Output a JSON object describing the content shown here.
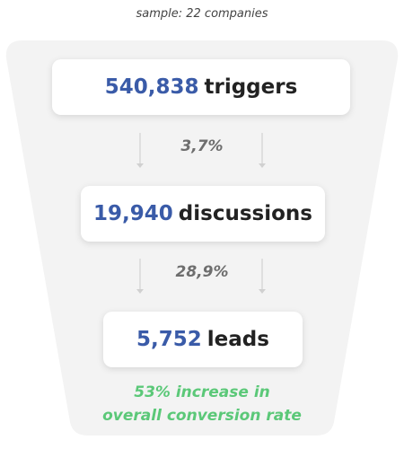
{
  "header": {
    "sample": "sample: 22 companies"
  },
  "stages": [
    {
      "value": "540,838",
      "label": "triggers"
    },
    {
      "value": "19,940",
      "label": "discussions"
    },
    {
      "value": "5,752",
      "label": "leads"
    }
  ],
  "conversions": [
    "3,7%",
    "28,9%"
  ],
  "footer": {
    "lines": [
      "53% increase in",
      "overall conversion rate"
    ]
  }
}
